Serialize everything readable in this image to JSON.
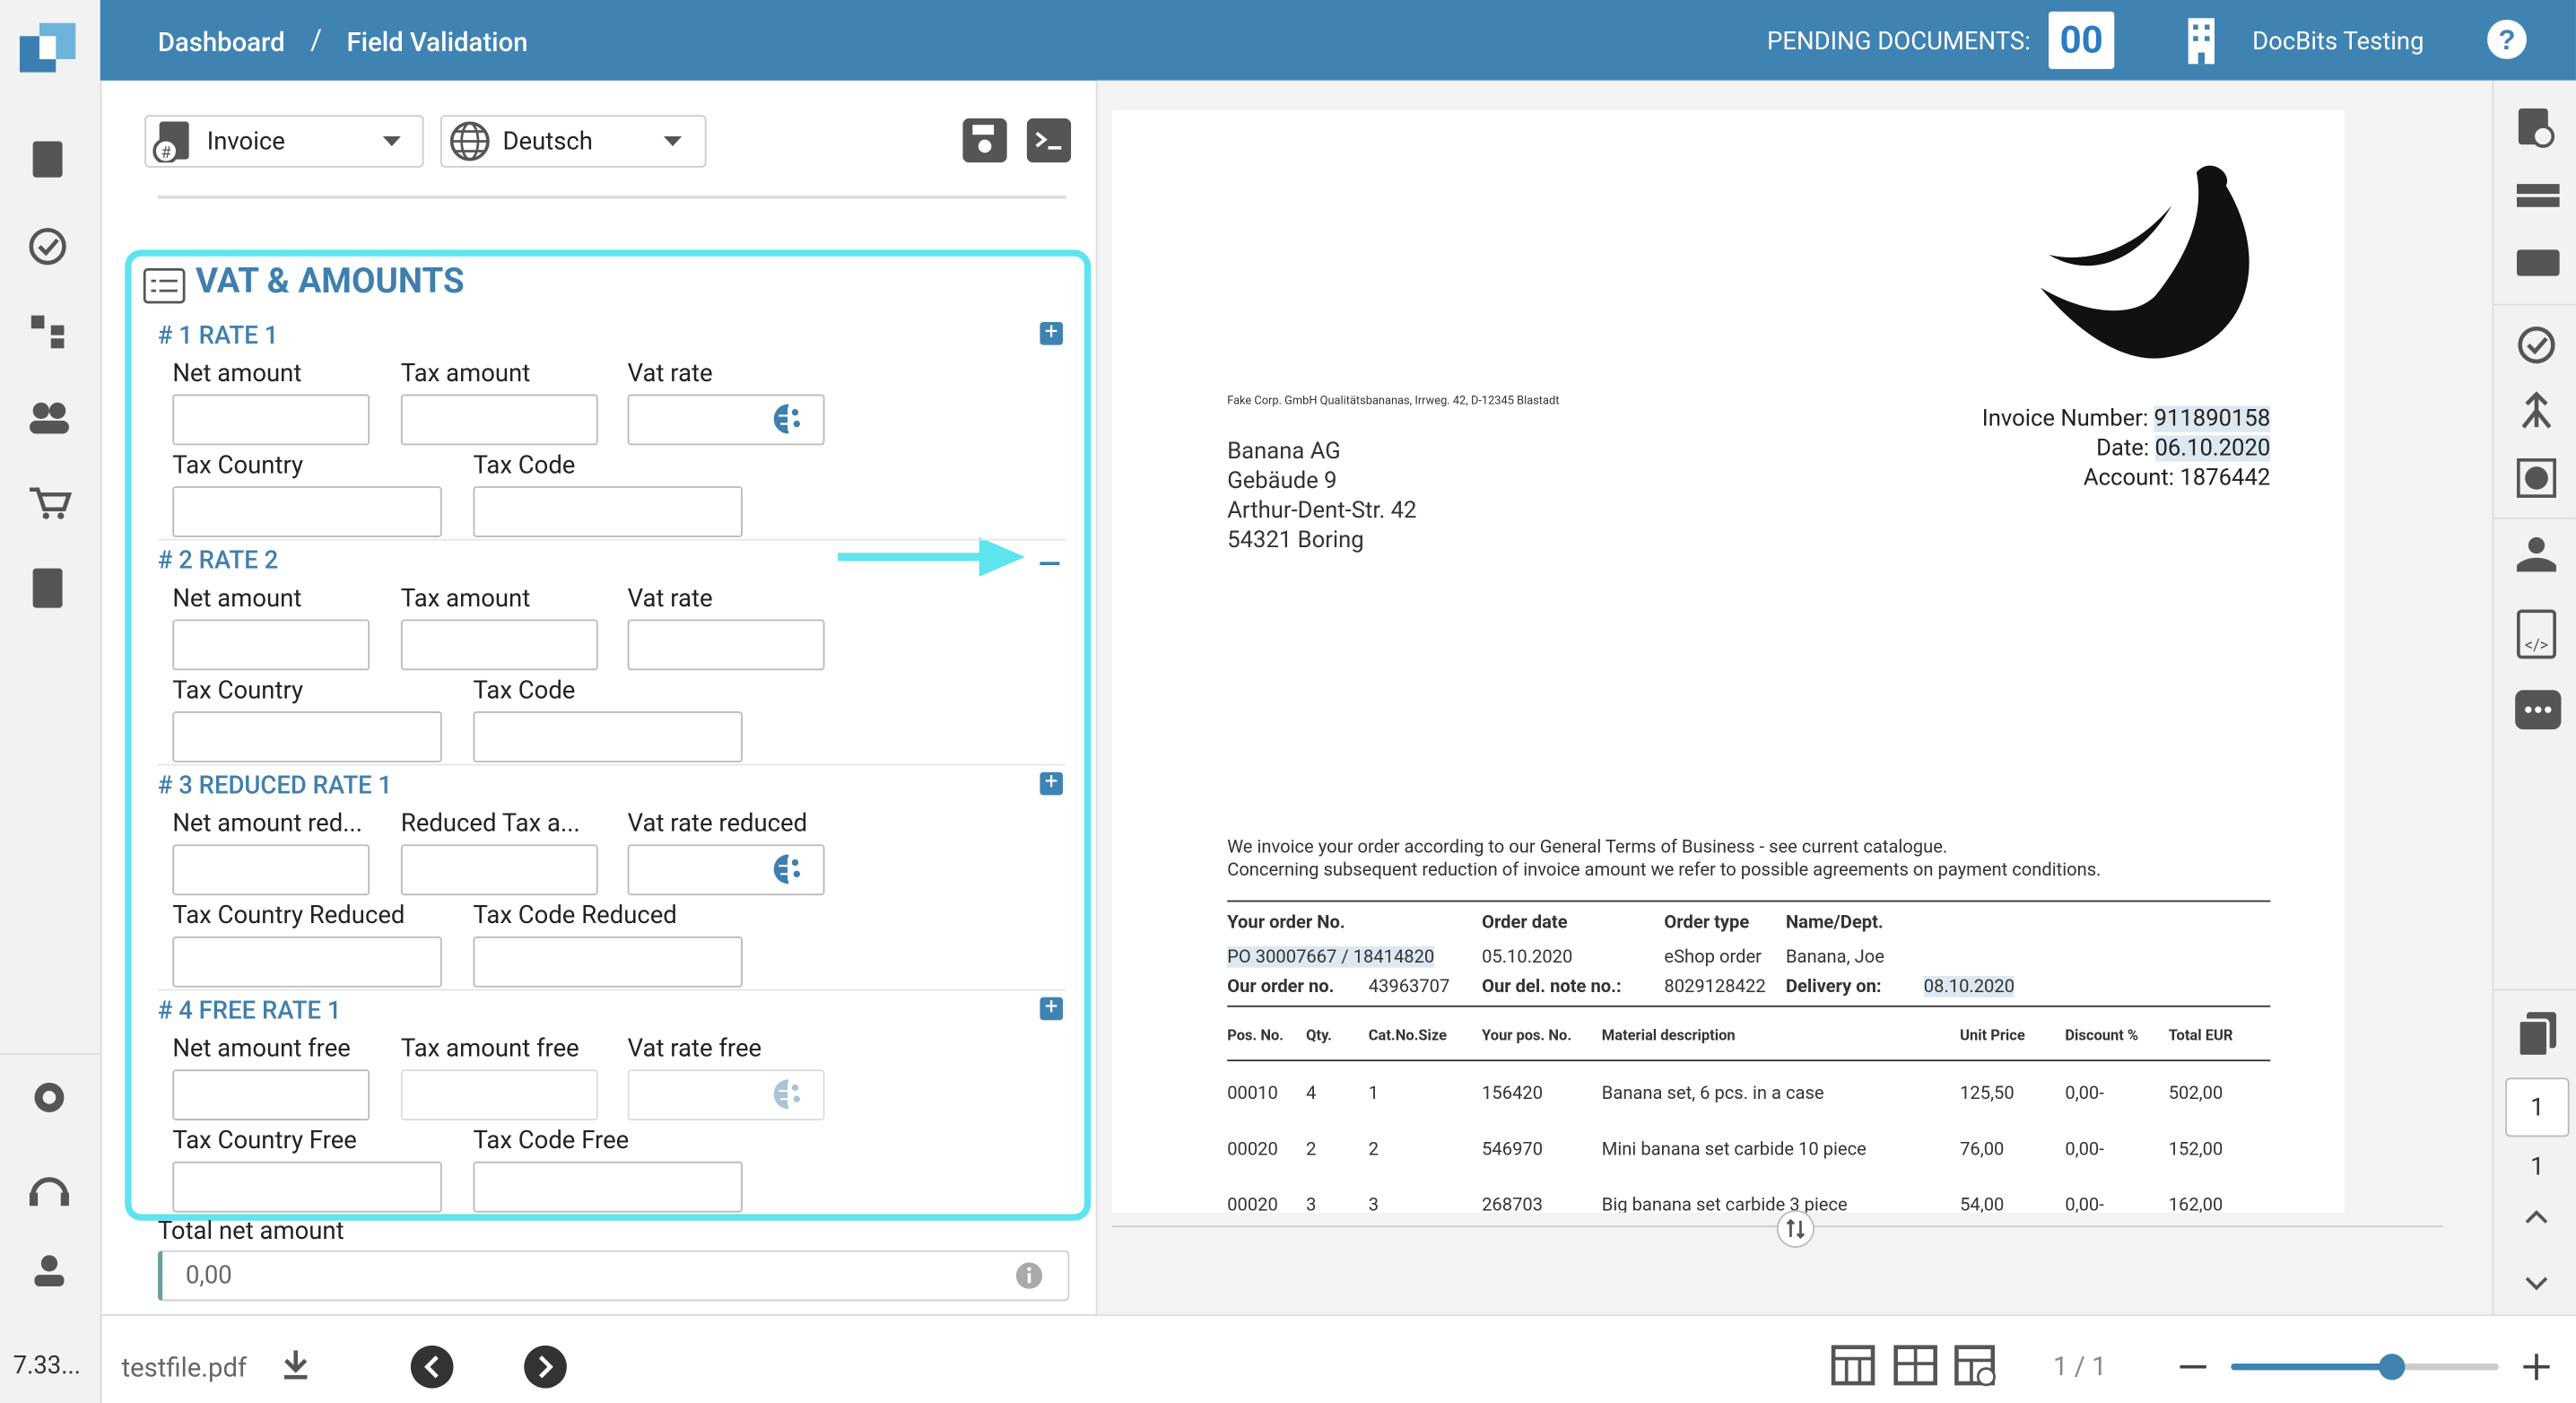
{
  "header": {
    "breadcrumb": [
      "Dashboard",
      "Field Validation"
    ],
    "separator": "/",
    "pending_label": "PENDING DOCUMENTS:",
    "pending_count": "00",
    "company": "DocBits Testing"
  },
  "toolbar": {
    "document_type": "Invoice",
    "language": "Deutsch"
  },
  "section": {
    "title": "VAT & AMOUNTS",
    "groups": [
      {
        "title": "# 1 RATE 1",
        "fields": [
          "Net amount",
          "Tax amount",
          "Vat rate",
          "Tax Country",
          "Tax Code"
        ]
      },
      {
        "title": "# 2 RATE 2",
        "fields": [
          "Net amount",
          "Tax amount",
          "Vat rate",
          "Tax Country",
          "Tax Code"
        ]
      },
      {
        "title": "# 3 REDUCED RATE 1",
        "fields": [
          "Net amount red...",
          "Reduced Tax a...",
          "Vat rate reduced",
          "Tax Country Reduced",
          "Tax Code Reduced"
        ]
      },
      {
        "title": "# 4 FREE RATE 1",
        "fields": [
          "Net amount free",
          "Tax amount free",
          "Vat rate free",
          "Tax Country Free",
          "Tax Code Free"
        ]
      }
    ]
  },
  "total": {
    "label": "Total net amount",
    "value": "0,00"
  },
  "footer": {
    "version": "7.33...",
    "filename": "testfile.pdf",
    "page": "1 / 1"
  },
  "pager": {
    "current": "1",
    "total": "1"
  },
  "document": {
    "sender": "Fake Corp. GmbH Qualitätsbananas, Irrweg. 42, D-12345 Blastadt",
    "recipient": [
      "Banana AG",
      "Gebäude 9",
      "Arthur-Dent-Str. 42",
      "54321 Boring"
    ],
    "meta": [
      {
        "label": "Invoice Number:",
        "value": "911890158"
      },
      {
        "label": "Date:",
        "value": "06.10.2020"
      },
      {
        "label": "Account:",
        "value": "1876442"
      }
    ],
    "intro": [
      "We invoice your order according to our General Terms of Business - see current catalogue.",
      "Concerning subsequent reduction of invoice amount we refer to possible agreements on payment conditions."
    ],
    "order_headers": [
      "Your order No.",
      "Order date",
      "Order type",
      "Name/Dept."
    ],
    "order_values": [
      "PO 30007667 / 18414820",
      "05.10.2020",
      "eShop order",
      "Banana, Joe"
    ],
    "order_row2": [
      "Our order no.",
      "43963707",
      "Our del. note no.:",
      "8029128422",
      "Delivery on:",
      "08.10.2020"
    ],
    "item_headers": [
      "Pos. No.",
      "Qty.",
      "Cat.No.Size",
      "Your pos. No.",
      "Material description",
      "Unit Price",
      "Discount %",
      "Total EUR"
    ],
    "items": [
      [
        "00010",
        "4",
        "1",
        "156420",
        "Banana set, 6 pcs. in a case",
        "125,50",
        "0,00-",
        "502,00"
      ],
      [
        "00020",
        "2",
        "2",
        "546970",
        "Mini banana set carbide 10 piece",
        "76,00",
        "0,00-",
        "152,00"
      ],
      [
        "00020",
        "3",
        "3",
        "268703",
        "Big banana set carbide 3 piece",
        "54,00",
        "0,00-",
        "162,00"
      ]
    ]
  }
}
